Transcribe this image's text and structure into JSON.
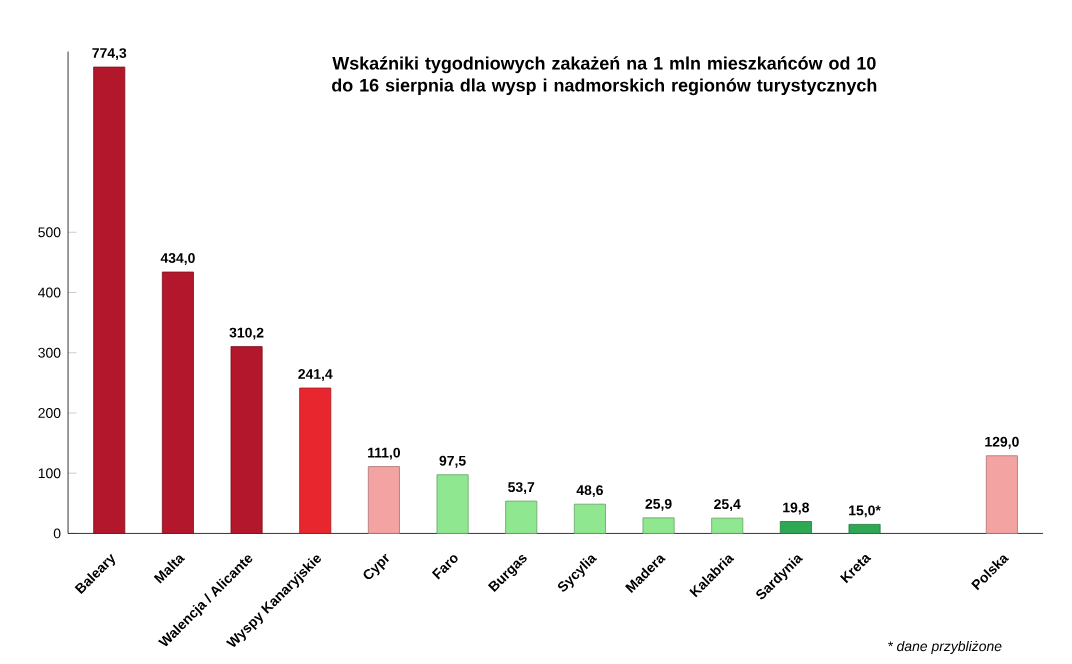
{
  "chart_data": {
    "type": "bar",
    "title": "Wskaźniki tygodniowych zakażeń na 1 mln mieszkańców od 10 do 16 sierpnia dla wysp i nadmorskich regionów turystycznych",
    "categories": [
      "Baleary",
      "Malta",
      "Walencja / Alicante",
      "Wyspy Kanaryjskie",
      "Cypr",
      "Faro",
      "Burgas",
      "Sycylia",
      "Madera",
      "Kalabria",
      "Sardynia",
      "Kreta",
      null,
      "Polska"
    ],
    "values": [
      774.3,
      434.0,
      310.2,
      241.4,
      111.0,
      97.5,
      53.7,
      48.6,
      25.9,
      25.4,
      19.8,
      15.0,
      null,
      129.0
    ],
    "value_labels": [
      "774,3",
      "434,0",
      "310,2",
      "241,4",
      "111,0",
      "97,5",
      "53,7",
      "48,6",
      "25,9",
      "25,4",
      "19,8",
      "15,0*",
      null,
      "129,0"
    ],
    "colors": [
      "#b3172b",
      "#b3172b",
      "#b3172b",
      "#e8262d",
      "#f4a3a3",
      "#8fe88f",
      "#8fe88f",
      "#8fe88f",
      "#8fe88f",
      "#8fe88f",
      "#2ea855",
      "#2ea855",
      "#ffffff",
      "#f4a3a3"
    ],
    "ylim": [
      0,
      800
    ],
    "yticks": [
      0,
      100,
      200,
      300,
      400,
      500
    ],
    "annotations": [
      "*  dane przybliżone"
    ]
  }
}
